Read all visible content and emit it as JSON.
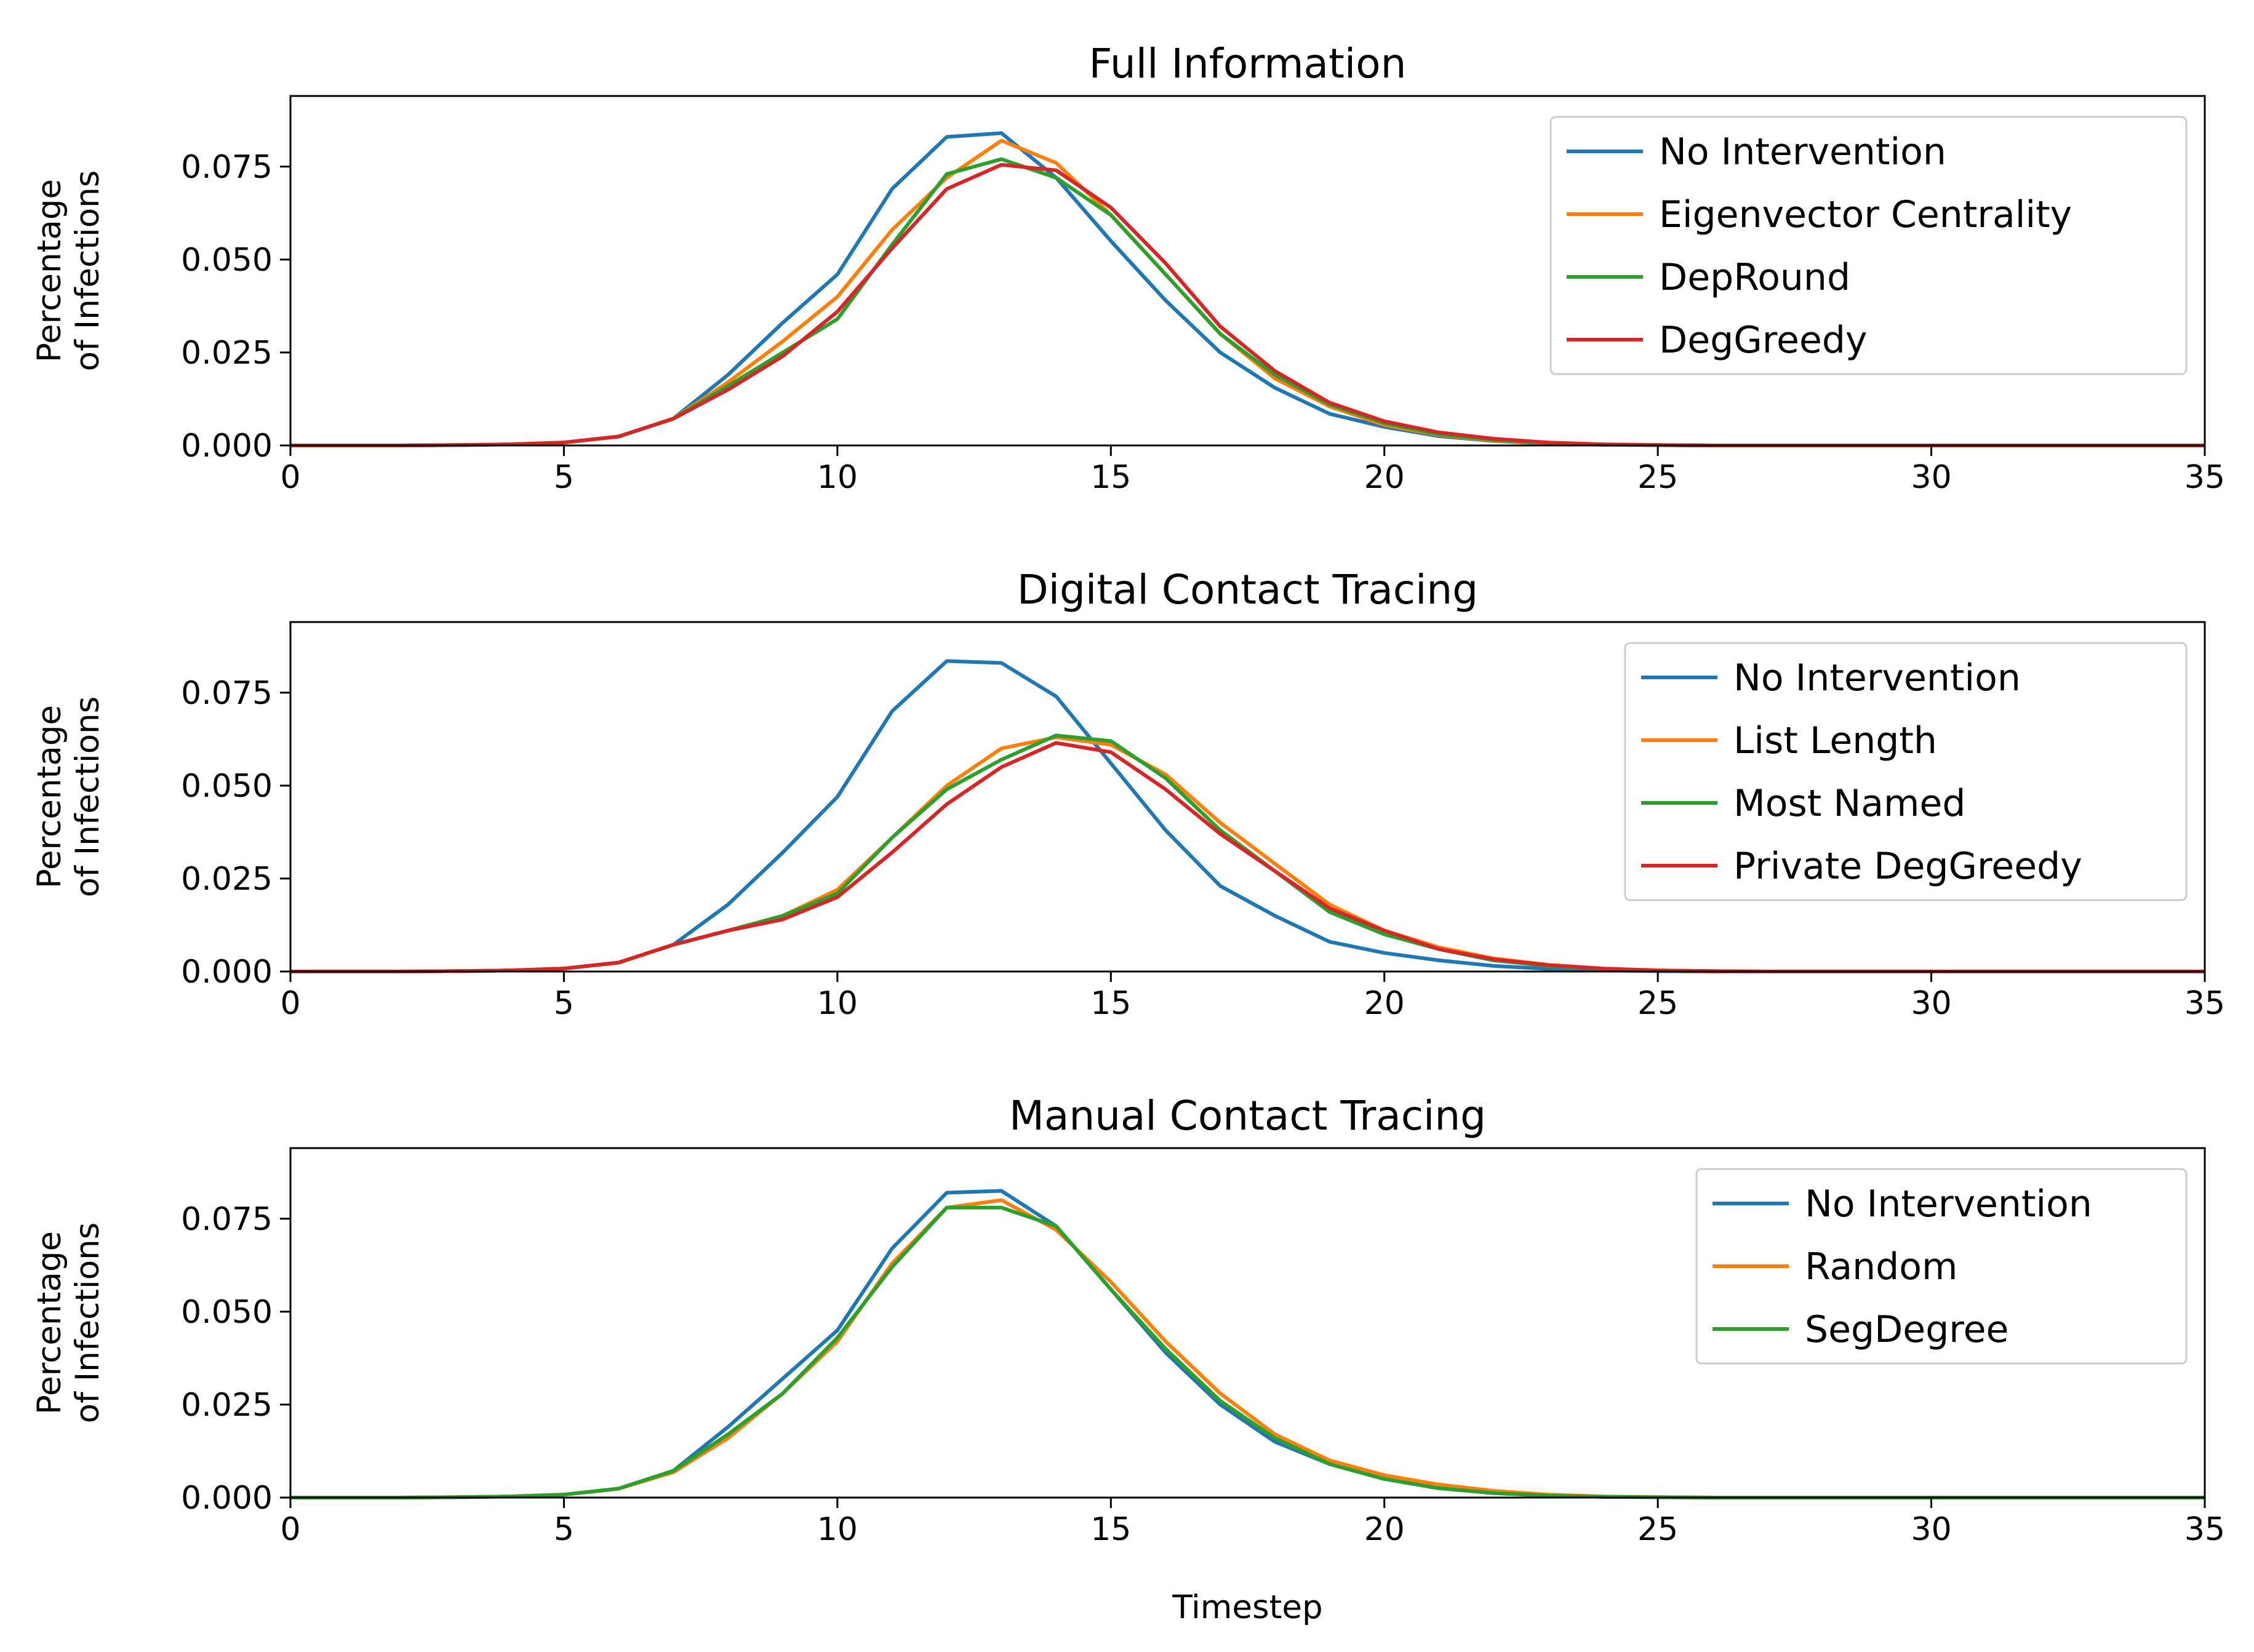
{
  "chart_data": [
    {
      "type": "line",
      "title": "Full Information",
      "xlabel": "",
      "ylabel": [
        "Percentage",
        "of Infections"
      ],
      "xlim": [
        0,
        35
      ],
      "ylim": [
        0,
        0.094
      ],
      "xticks": [
        "0",
        "5",
        "10",
        "15",
        "20",
        "25",
        "30",
        "35"
      ],
      "yticks": [
        "0.000",
        "0.025",
        "0.050",
        "0.075"
      ],
      "grid": false,
      "legend_position": "top-right",
      "x": [
        0,
        1,
        2,
        3,
        4,
        5,
        6,
        7,
        8,
        9,
        10,
        11,
        12,
        13,
        14,
        15,
        16,
        17,
        18,
        19,
        20,
        21,
        22,
        23,
        24,
        25,
        26,
        27,
        28,
        29,
        30,
        31,
        32,
        33,
        34,
        35
      ],
      "series": [
        {
          "name": "No Intervention",
          "color": "#1f77b4",
          "values": [
            0,
            0,
            0,
            0.0001,
            0.0003,
            0.0008,
            0.0024,
            0.0072,
            0.019,
            0.033,
            0.046,
            0.069,
            0.083,
            0.084,
            0.072,
            0.055,
            0.039,
            0.025,
            0.0155,
            0.0085,
            0.005,
            0.0025,
            0.0012,
            0.0005,
            0.0002,
            0.0001,
            0,
            0,
            0,
            0,
            0,
            0,
            0,
            0,
            0,
            0
          ]
        },
        {
          "name": "Eigenvector Centrality",
          "color": "#ff7f0e",
          "values": [
            0,
            0,
            0,
            0.0001,
            0.0003,
            0.0008,
            0.0024,
            0.0072,
            0.017,
            0.028,
            0.04,
            0.058,
            0.072,
            0.082,
            0.076,
            0.062,
            0.046,
            0.03,
            0.018,
            0.0105,
            0.0055,
            0.0028,
            0.0013,
            0.0006,
            0.0002,
            0.0001,
            0,
            0,
            0,
            0,
            0,
            0,
            0,
            0,
            0,
            0
          ]
        },
        {
          "name": "DepRound",
          "color": "#2ca02c",
          "values": [
            0,
            0,
            0,
            0.0001,
            0.0003,
            0.0008,
            0.0024,
            0.0072,
            0.016,
            0.025,
            0.034,
            0.054,
            0.073,
            0.077,
            0.072,
            0.062,
            0.046,
            0.03,
            0.019,
            0.011,
            0.006,
            0.003,
            0.0015,
            0.0007,
            0.0003,
            0.0001,
            0,
            0,
            0,
            0,
            0,
            0,
            0,
            0,
            0,
            0
          ]
        },
        {
          "name": "DegGreedy",
          "color": "#d62728",
          "values": [
            0,
            0,
            0,
            0.0001,
            0.0003,
            0.0008,
            0.0024,
            0.0072,
            0.015,
            0.024,
            0.036,
            0.053,
            0.069,
            0.0755,
            0.074,
            0.064,
            0.049,
            0.032,
            0.02,
            0.0115,
            0.0065,
            0.0035,
            0.0018,
            0.0008,
            0.0003,
            0.0001,
            0,
            0,
            0,
            0,
            0,
            0,
            0,
            0,
            0,
            0
          ]
        }
      ]
    },
    {
      "type": "line",
      "title": "Digital Contact Tracing",
      "xlabel": "",
      "ylabel": [
        "Percentage",
        "of Infections"
      ],
      "xlim": [
        0,
        35
      ],
      "ylim": [
        0,
        0.094
      ],
      "xticks": [
        "0",
        "5",
        "10",
        "15",
        "20",
        "25",
        "30",
        "35"
      ],
      "yticks": [
        "0.000",
        "0.025",
        "0.050",
        "0.075"
      ],
      "grid": false,
      "legend_position": "top-right",
      "x": [
        0,
        1,
        2,
        3,
        4,
        5,
        6,
        7,
        8,
        9,
        10,
        11,
        12,
        13,
        14,
        15,
        16,
        17,
        18,
        19,
        20,
        21,
        22,
        23,
        24,
        25,
        26,
        27,
        28,
        29,
        30,
        31,
        32,
        33,
        34,
        35
      ],
      "series": [
        {
          "name": "No Intervention",
          "color": "#1f77b4",
          "values": [
            0,
            0,
            0,
            0.0001,
            0.0003,
            0.0008,
            0.0024,
            0.0072,
            0.018,
            0.032,
            0.047,
            0.07,
            0.0835,
            0.083,
            0.074,
            0.056,
            0.038,
            0.023,
            0.015,
            0.008,
            0.005,
            0.003,
            0.0015,
            0.0007,
            0.0003,
            0.0001,
            0,
            0,
            0,
            0,
            0,
            0,
            0,
            0,
            0,
            0
          ]
        },
        {
          "name": "List Length",
          "color": "#ff7f0e",
          "values": [
            0,
            0,
            0,
            0.0001,
            0.0003,
            0.0008,
            0.0024,
            0.0072,
            0.011,
            0.015,
            0.022,
            0.036,
            0.05,
            0.06,
            0.063,
            0.061,
            0.053,
            0.04,
            0.029,
            0.018,
            0.011,
            0.0065,
            0.0035,
            0.0018,
            0.0008,
            0.0003,
            0.0001,
            0,
            0,
            0,
            0,
            0,
            0,
            0,
            0,
            0
          ]
        },
        {
          "name": "Most Named",
          "color": "#2ca02c",
          "values": [
            0,
            0,
            0,
            0.0001,
            0.0003,
            0.0008,
            0.0024,
            0.0072,
            0.011,
            0.015,
            0.021,
            0.036,
            0.049,
            0.057,
            0.0635,
            0.062,
            0.052,
            0.038,
            0.027,
            0.016,
            0.01,
            0.006,
            0.003,
            0.0015,
            0.0007,
            0.0003,
            0.0001,
            0,
            0,
            0,
            0,
            0,
            0,
            0,
            0,
            0
          ]
        },
        {
          "name": "Private DegGreedy",
          "color": "#d62728",
          "values": [
            0,
            0,
            0,
            0.0001,
            0.0003,
            0.0008,
            0.0024,
            0.0072,
            0.011,
            0.014,
            0.02,
            0.032,
            0.045,
            0.055,
            0.0615,
            0.059,
            0.049,
            0.037,
            0.027,
            0.017,
            0.011,
            0.006,
            0.0033,
            0.0017,
            0.0008,
            0.0003,
            0.0001,
            0,
            0,
            0,
            0,
            0,
            0,
            0,
            0,
            0
          ]
        }
      ]
    },
    {
      "type": "line",
      "title": "Manual Contact Tracing",
      "xlabel": "Timestep",
      "ylabel": [
        "Percentage",
        "of Infections"
      ],
      "xlim": [
        0,
        35
      ],
      "ylim": [
        0,
        0.094
      ],
      "xticks": [
        "0",
        "5",
        "10",
        "15",
        "20",
        "25",
        "30",
        "35"
      ],
      "yticks": [
        "0.000",
        "0.025",
        "0.050",
        "0.075"
      ],
      "grid": false,
      "legend_position": "top-right",
      "x": [
        0,
        1,
        2,
        3,
        4,
        5,
        6,
        7,
        8,
        9,
        10,
        11,
        12,
        13,
        14,
        15,
        16,
        17,
        18,
        19,
        20,
        21,
        22,
        23,
        24,
        25,
        26,
        27,
        28,
        29,
        30,
        31,
        32,
        33,
        34,
        35
      ],
      "series": [
        {
          "name": "No Intervention",
          "color": "#1f77b4",
          "values": [
            0,
            0,
            0,
            0.0001,
            0.0003,
            0.0008,
            0.0024,
            0.0072,
            0.019,
            0.032,
            0.045,
            0.067,
            0.082,
            0.0825,
            0.073,
            0.056,
            0.039,
            0.025,
            0.015,
            0.009,
            0.005,
            0.0025,
            0.0012,
            0.0005,
            0.0002,
            0.0001,
            0,
            0,
            0,
            0,
            0,
            0,
            0,
            0,
            0,
            0
          ]
        },
        {
          "name": "Random",
          "color": "#ff7f0e",
          "values": [
            0,
            0,
            0,
            0.0001,
            0.0003,
            0.0008,
            0.0024,
            0.0068,
            0.016,
            0.028,
            0.042,
            0.063,
            0.078,
            0.08,
            0.072,
            0.058,
            0.042,
            0.028,
            0.017,
            0.01,
            0.006,
            0.0035,
            0.0018,
            0.0008,
            0.0003,
            0.0001,
            0,
            0,
            0,
            0,
            0,
            0,
            0,
            0,
            0,
            0
          ]
        },
        {
          "name": "SegDegree",
          "color": "#2ca02c",
          "values": [
            0,
            0,
            0,
            0.0001,
            0.0003,
            0.0008,
            0.0024,
            0.0072,
            0.017,
            0.028,
            0.043,
            0.062,
            0.078,
            0.078,
            0.073,
            0.056,
            0.04,
            0.026,
            0.016,
            0.009,
            0.005,
            0.0025,
            0.0012,
            0.0005,
            0.0002,
            0.0001,
            0,
            0,
            0,
            0,
            0,
            0,
            0,
            0,
            0,
            0
          ]
        }
      ]
    }
  ]
}
